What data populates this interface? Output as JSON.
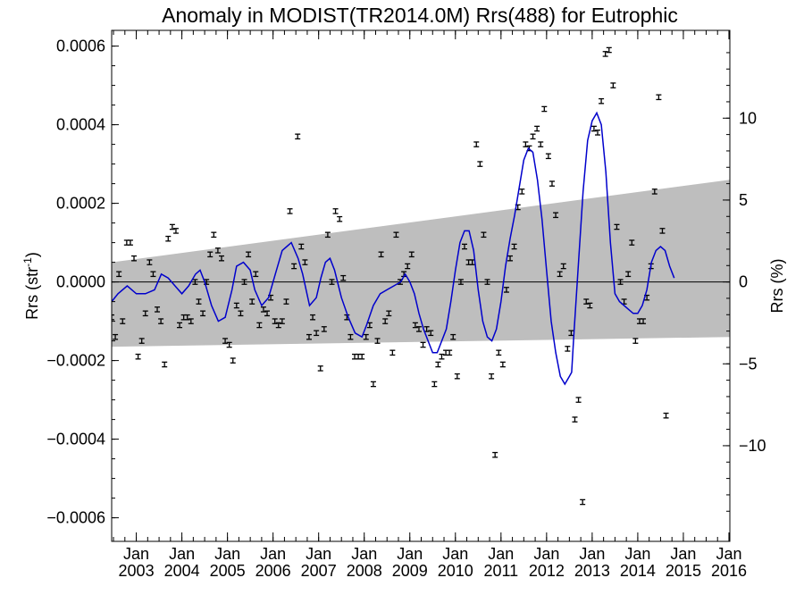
{
  "chart_data": {
    "type": "scatter",
    "title": "Anomaly in MODIST(TR2014.0M) Rrs(488) for Eutrophic",
    "ylabel_main": "Rrs (str",
    "ylabel_sup": "-1",
    "ylabel_close": ")",
    "ylabel_right": "Rrs (%)",
    "ylim": [
      -0.00066,
      0.00064
    ],
    "xlim": [
      2002.46,
      2016.02
    ],
    "yticks": [
      0.0006,
      0.0004,
      0.0002,
      0.0,
      -0.0002,
      -0.0004,
      -0.0006
    ],
    "ytick_labels": [
      "0.0006",
      "0.0004",
      "0.0002",
      "0.0000",
      "−0.0002",
      "−0.0004",
      "−0.0006"
    ],
    "right_ticks": [
      10,
      5,
      0,
      -5,
      -10
    ],
    "right_tick_labels": [
      "10",
      "5",
      "0",
      "−5",
      "−10"
    ],
    "right_scale_percent_per_unit": 24000,
    "xticks": [
      2003,
      2004,
      2005,
      2006,
      2007,
      2008,
      2009,
      2010,
      2011,
      2012,
      2013,
      2014,
      2015,
      2016
    ],
    "xtick_month_label": "Jan",
    "xtick_year_labels": [
      "2003",
      "2004",
      "2005",
      "2006",
      "2007",
      "2008",
      "2009",
      "2010",
      "2011",
      "2012",
      "2013",
      "2014",
      "2015",
      "2016"
    ],
    "zero_line": 0,
    "band": {
      "upper": [
        [
          2002.46,
          5e-05
        ],
        [
          2016.02,
          0.00026
        ]
      ],
      "lower": [
        [
          2002.46,
          -0.000165
        ],
        [
          2016.02,
          -0.00014
        ]
      ],
      "color": "#bebebe"
    },
    "smoothed_color": "#0000cc",
    "points_color": "#000000",
    "error_halfwidth": 6e-06,
    "points": [
      [
        2002.46,
        -9e-05
      ],
      [
        2002.54,
        -0.00014
      ],
      [
        2002.62,
        2e-05
      ],
      [
        2002.7,
        -0.0001
      ],
      [
        2002.79,
        0.0001
      ],
      [
        2002.87,
        0.0001
      ],
      [
        2002.95,
        6e-05
      ],
      [
        2003.04,
        -0.00019
      ],
      [
        2003.12,
        -0.00015
      ],
      [
        2003.2,
        -8e-05
      ],
      [
        2003.29,
        5e-05
      ],
      [
        2003.37,
        2e-05
      ],
      [
        2003.46,
        -7e-05
      ],
      [
        2003.54,
        -0.0001
      ],
      [
        2003.62,
        -0.00021
      ],
      [
        2003.7,
        0.00011
      ],
      [
        2003.79,
        0.00014
      ],
      [
        2003.87,
        0.00013
      ],
      [
        2003.95,
        -0.00011
      ],
      [
        2004.04,
        -9e-05
      ],
      [
        2004.12,
        -9e-05
      ],
      [
        2004.2,
        -0.0001
      ],
      [
        2004.29,
        0.0
      ],
      [
        2004.37,
        -5e-05
      ],
      [
        2004.46,
        -8e-05
      ],
      [
        2004.54,
        0.0
      ],
      [
        2004.62,
        7e-05
      ],
      [
        2004.7,
        0.00012
      ],
      [
        2004.79,
        8e-05
      ],
      [
        2004.87,
        6e-05
      ],
      [
        2004.95,
        -0.00015
      ],
      [
        2005.04,
        -0.00016
      ],
      [
        2005.12,
        -0.0002
      ],
      [
        2005.2,
        -6e-05
      ],
      [
        2005.29,
        -8e-05
      ],
      [
        2005.37,
        0.0
      ],
      [
        2005.46,
        7e-05
      ],
      [
        2005.54,
        -5e-05
      ],
      [
        2005.62,
        2e-05
      ],
      [
        2005.7,
        -0.00011
      ],
      [
        2005.79,
        -7e-05
      ],
      [
        2005.87,
        -8e-05
      ],
      [
        2005.95,
        -4e-05
      ],
      [
        2006.04,
        -0.0001
      ],
      [
        2006.12,
        -0.00011
      ],
      [
        2006.2,
        -0.0001
      ],
      [
        2006.29,
        -5e-05
      ],
      [
        2006.37,
        0.00018
      ],
      [
        2006.46,
        4e-05
      ],
      [
        2006.54,
        0.00037
      ],
      [
        2006.62,
        9e-05
      ],
      [
        2006.7,
        5e-05
      ],
      [
        2006.79,
        -0.00014
      ],
      [
        2006.87,
        -9e-05
      ],
      [
        2006.95,
        -0.00013
      ],
      [
        2007.04,
        -0.00022
      ],
      [
        2007.12,
        -0.00012
      ],
      [
        2007.2,
        0.00012
      ],
      [
        2007.29,
        0.0
      ],
      [
        2007.37,
        0.00018
      ],
      [
        2007.46,
        0.00016
      ],
      [
        2007.54,
        1e-05
      ],
      [
        2007.62,
        -9e-05
      ],
      [
        2007.7,
        -0.00014
      ],
      [
        2007.79,
        -0.00019
      ],
      [
        2007.87,
        -0.00019
      ],
      [
        2007.95,
        -0.00019
      ],
      [
        2008.04,
        -0.00014
      ],
      [
        2008.12,
        -0.00011
      ],
      [
        2008.2,
        -0.00026
      ],
      [
        2008.29,
        -0.00015
      ],
      [
        2008.37,
        7e-05
      ],
      [
        2008.46,
        -0.0001
      ],
      [
        2008.54,
        -8e-05
      ],
      [
        2008.62,
        -0.00018
      ],
      [
        2008.7,
        0.00012
      ],
      [
        2008.79,
        0.0
      ],
      [
        2008.87,
        2e-05
      ],
      [
        2008.95,
        4e-05
      ],
      [
        2009.04,
        7e-05
      ],
      [
        2009.12,
        -0.00011
      ],
      [
        2009.2,
        -0.00012
      ],
      [
        2009.29,
        -0.00016
      ],
      [
        2009.37,
        -0.00012
      ],
      [
        2009.46,
        -0.00013
      ],
      [
        2009.54,
        -0.00026
      ],
      [
        2009.62,
        -0.00021
      ],
      [
        2009.7,
        -0.00019
      ],
      [
        2009.79,
        -0.00018
      ],
      [
        2009.87,
        -0.00018
      ],
      [
        2009.95,
        -0.00014
      ],
      [
        2010.04,
        -0.00024
      ],
      [
        2010.12,
        0.0
      ],
      [
        2010.2,
        9e-05
      ],
      [
        2010.29,
        5e-05
      ],
      [
        2010.37,
        5e-05
      ],
      [
        2010.46,
        0.00035
      ],
      [
        2010.54,
        0.0003
      ],
      [
        2010.62,
        0.00012
      ],
      [
        2010.7,
        0.0
      ],
      [
        2010.79,
        -0.00024
      ],
      [
        2010.87,
        -0.00044
      ],
      [
        2010.95,
        -0.00018
      ],
      [
        2011.04,
        -0.00021
      ],
      [
        2011.12,
        -2e-05
      ],
      [
        2011.2,
        6e-05
      ],
      [
        2011.29,
        9e-05
      ],
      [
        2011.37,
        0.00019
      ],
      [
        2011.46,
        0.00023
      ],
      [
        2011.54,
        0.00035
      ],
      [
        2011.62,
        0.00034
      ],
      [
        2011.7,
        0.00037
      ],
      [
        2011.79,
        0.00039
      ],
      [
        2011.87,
        0.00035
      ],
      [
        2011.95,
        0.00044
      ],
      [
        2012.04,
        0.00032
      ],
      [
        2012.12,
        0.00025
      ],
      [
        2012.2,
        0.00017
      ],
      [
        2012.29,
        2e-05
      ],
      [
        2012.37,
        4e-05
      ],
      [
        2012.46,
        -0.00017
      ],
      [
        2012.54,
        -0.00013
      ],
      [
        2012.62,
        -0.00035
      ],
      [
        2012.7,
        -0.0003
      ],
      [
        2012.79,
        -0.00056
      ],
      [
        2012.87,
        -5e-05
      ],
      [
        2012.95,
        -6e-05
      ],
      [
        2013.04,
        0.00039
      ],
      [
        2013.12,
        0.00038
      ],
      [
        2013.2,
        0.00046
      ],
      [
        2013.29,
        0.00058
      ],
      [
        2013.37,
        0.00059
      ],
      [
        2013.46,
        0.0005
      ],
      [
        2013.54,
        0.00014
      ],
      [
        2013.62,
        0.0
      ],
      [
        2013.7,
        -5e-05
      ],
      [
        2013.79,
        2e-05
      ],
      [
        2013.87,
        0.0001
      ],
      [
        2013.95,
        -0.00015
      ],
      [
        2014.04,
        -0.0001
      ],
      [
        2014.12,
        -0.0001
      ],
      [
        2014.2,
        -4e-05
      ],
      [
        2014.29,
        4e-05
      ],
      [
        2014.37,
        0.00023
      ],
      [
        2014.46,
        0.00047
      ],
      [
        2014.54,
        0.00013
      ],
      [
        2014.62,
        -0.00034
      ]
    ],
    "smoothed": [
      [
        2002.46,
        -5e-05
      ],
      [
        2002.6,
        -3e-05
      ],
      [
        2002.8,
        -1e-05
      ],
      [
        2003.0,
        -3e-05
      ],
      [
        2003.2,
        -3e-05
      ],
      [
        2003.4,
        -2e-05
      ],
      [
        2003.55,
        2e-05
      ],
      [
        2003.7,
        1e-05
      ],
      [
        2003.85,
        -1e-05
      ],
      [
        2004.0,
        -3e-05
      ],
      [
        2004.15,
        -1e-05
      ],
      [
        2004.3,
        2e-05
      ],
      [
        2004.4,
        3e-05
      ],
      [
        2004.5,
        0.0
      ],
      [
        2004.65,
        -6e-05
      ],
      [
        2004.8,
        -0.0001
      ],
      [
        2004.95,
        -9e-05
      ],
      [
        2005.1,
        -2e-05
      ],
      [
        2005.2,
        4e-05
      ],
      [
        2005.35,
        5e-05
      ],
      [
        2005.5,
        3e-05
      ],
      [
        2005.6,
        -2e-05
      ],
      [
        2005.75,
        -6e-05
      ],
      [
        2005.9,
        -4e-05
      ],
      [
        2006.05,
        2e-05
      ],
      [
        2006.2,
        8e-05
      ],
      [
        2006.3,
        9e-05
      ],
      [
        2006.4,
        0.0001
      ],
      [
        2006.55,
        6e-05
      ],
      [
        2006.65,
        2e-05
      ],
      [
        2006.8,
        -6e-05
      ],
      [
        2006.95,
        -4e-05
      ],
      [
        2007.05,
        1e-05
      ],
      [
        2007.15,
        5e-05
      ],
      [
        2007.25,
        6e-05
      ],
      [
        2007.35,
        3e-05
      ],
      [
        2007.5,
        -4e-05
      ],
      [
        2007.65,
        -9e-05
      ],
      [
        2007.8,
        -0.00013
      ],
      [
        2007.95,
        -0.00014
      ],
      [
        2008.05,
        -0.00011
      ],
      [
        2008.2,
        -6e-05
      ],
      [
        2008.35,
        -3e-05
      ],
      [
        2008.5,
        -2e-05
      ],
      [
        2008.65,
        -1e-05
      ],
      [
        2008.8,
        0.0
      ],
      [
        2008.9,
        2e-05
      ],
      [
        2009.0,
        0.0
      ],
      [
        2009.1,
        -3e-05
      ],
      [
        2009.2,
        -8e-05
      ],
      [
        2009.3,
        -0.00012
      ],
      [
        2009.4,
        -0.00015
      ],
      [
        2009.5,
        -0.00018
      ],
      [
        2009.6,
        -0.00018
      ],
      [
        2009.7,
        -0.00015
      ],
      [
        2009.8,
        -0.00012
      ],
      [
        2009.9,
        -5e-05
      ],
      [
        2010.0,
        3e-05
      ],
      [
        2010.1,
        0.0001
      ],
      [
        2010.2,
        0.00013
      ],
      [
        2010.3,
        0.00013
      ],
      [
        2010.4,
        8e-05
      ],
      [
        2010.5,
        -2e-05
      ],
      [
        2010.6,
        -0.0001
      ],
      [
        2010.7,
        -0.00014
      ],
      [
        2010.8,
        -0.00015
      ],
      [
        2010.9,
        -0.00012
      ],
      [
        2011.0,
        -5e-05
      ],
      [
        2011.1,
        4e-05
      ],
      [
        2011.2,
        0.00011
      ],
      [
        2011.3,
        0.00017
      ],
      [
        2011.4,
        0.00024
      ],
      [
        2011.5,
        0.00031
      ],
      [
        2011.6,
        0.00034
      ],
      [
        2011.7,
        0.00033
      ],
      [
        2011.8,
        0.00026
      ],
      [
        2011.9,
        0.00016
      ],
      [
        2012.0,
        3e-05
      ],
      [
        2012.1,
        -0.0001
      ],
      [
        2012.2,
        -0.00018
      ],
      [
        2012.3,
        -0.00024
      ],
      [
        2012.4,
        -0.00026
      ],
      [
        2012.5,
        -0.00024
      ],
      [
        2012.55,
        -0.00023
      ],
      [
        2012.6,
        -0.00013
      ],
      [
        2012.7,
        5e-05
      ],
      [
        2012.8,
        0.00023
      ],
      [
        2012.9,
        0.00036
      ],
      [
        2013.0,
        0.00041
      ],
      [
        2013.1,
        0.00043
      ],
      [
        2013.2,
        0.0004
      ],
      [
        2013.3,
        0.00028
      ],
      [
        2013.4,
        0.0001
      ],
      [
        2013.5,
        -3e-05
      ],
      [
        2013.6,
        -5e-05
      ],
      [
        2013.7,
        -6e-05
      ],
      [
        2013.8,
        -7e-05
      ],
      [
        2013.9,
        -8e-05
      ],
      [
        2014.0,
        -8e-05
      ],
      [
        2014.1,
        -6e-05
      ],
      [
        2014.2,
        -2e-05
      ],
      [
        2014.3,
        5e-05
      ],
      [
        2014.4,
        8e-05
      ],
      [
        2014.5,
        9e-05
      ],
      [
        2014.6,
        8e-05
      ],
      [
        2014.7,
        4e-05
      ],
      [
        2014.8,
        1e-05
      ]
    ]
  }
}
